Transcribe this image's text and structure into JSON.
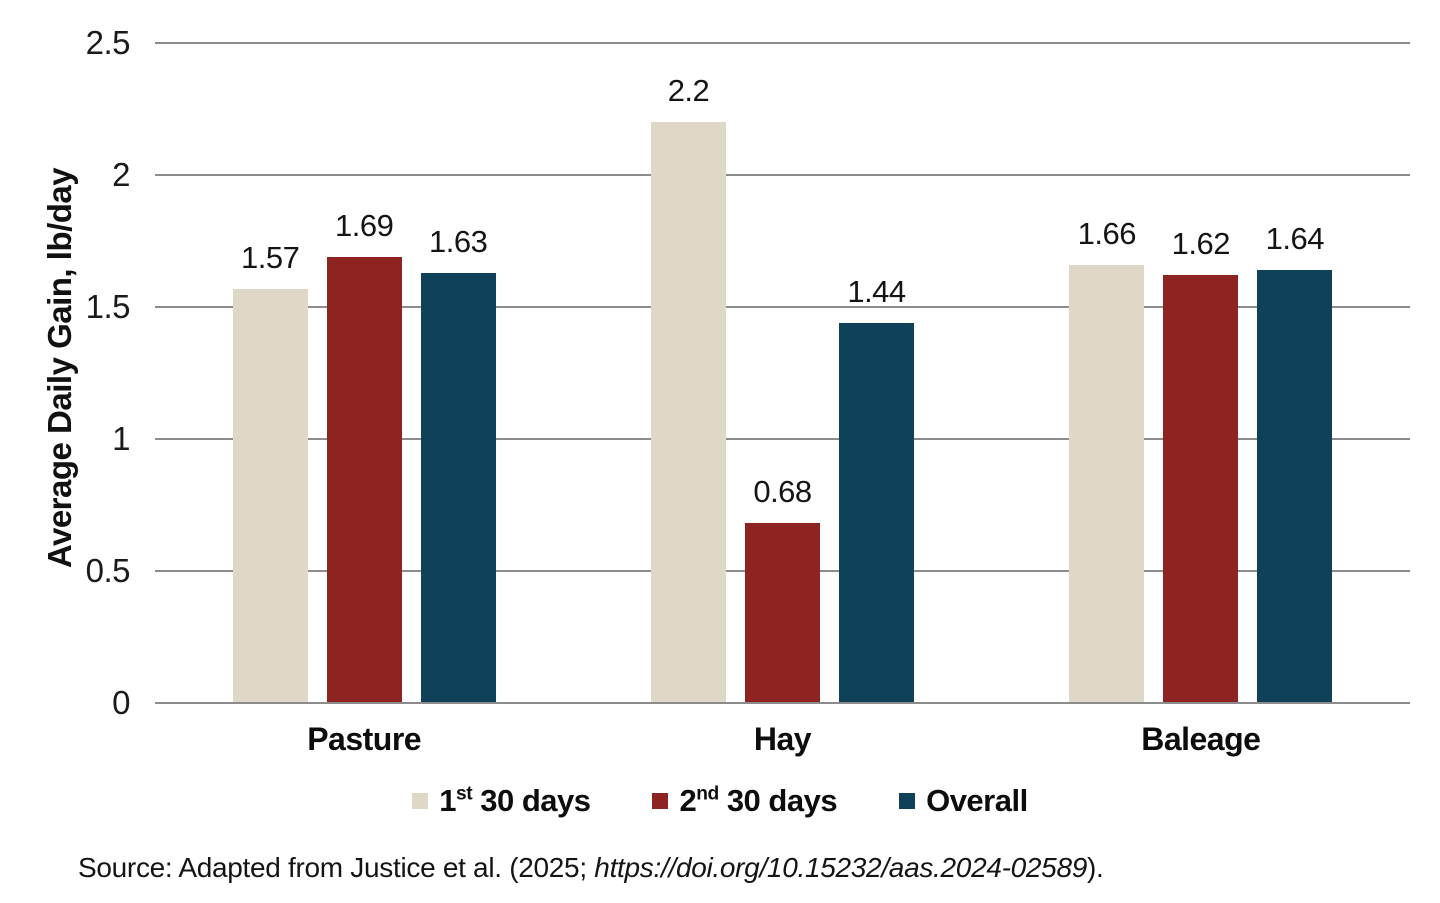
{
  "chart_data": {
    "type": "bar",
    "title": "",
    "xlabel": "",
    "ylabel": "Average Daily Gain, lb/day",
    "ylim": [
      0,
      2.5
    ],
    "yticks": [
      0,
      0.5,
      1,
      1.5,
      2,
      2.5
    ],
    "grid": true,
    "legend_position": "bottom",
    "categories": [
      "Pasture",
      "Hay",
      "Baleage"
    ],
    "series": [
      {
        "name": "1st 30 days",
        "name_parts": {
          "base": "1",
          "sup": "st",
          "rest": " 30 days"
        },
        "color": "#E0D8C6",
        "values": [
          1.57,
          2.2,
          1.66
        ]
      },
      {
        "name": "2nd 30 days",
        "name_parts": {
          "base": "2",
          "sup": "nd",
          "rest": " 30 days"
        },
        "color": "#8E2422",
        "values": [
          1.69,
          0.68,
          1.62
        ]
      },
      {
        "name": "Overall",
        "name_parts": {
          "base": "Overall",
          "sup": "",
          "rest": ""
        },
        "color": "#0F4258",
        "values": [
          1.63,
          1.44,
          1.64
        ]
      }
    ],
    "data_labels": {
      "Pasture": [
        "1.57",
        "1.69",
        "1.63"
      ],
      "Hay": [
        "2.2",
        "0.68",
        "1.44"
      ],
      "Baleage": [
        "1.66",
        "1.62",
        "1.64"
      ]
    },
    "colors": {
      "gridline": "#8C8C8C",
      "text": "#141414"
    }
  },
  "source": {
    "prefix": "Source: Adapted from Justice et al. (2025; ",
    "doi": "https://doi.org/10.15232/aas.2024-02589",
    "suffix": ")."
  }
}
